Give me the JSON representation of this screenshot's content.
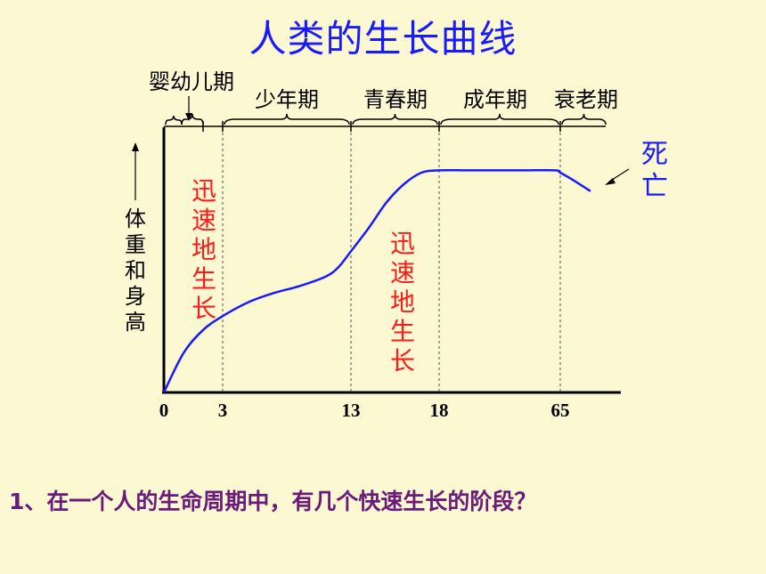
{
  "slide": {
    "title": "人类的生长曲线",
    "question": "1、在一个人的生命周期中，有几个快速生长的阶段？"
  },
  "chart_data": {
    "type": "line",
    "title": "人类的生长曲线",
    "ylabel": "体重和身高",
    "xlabel": "",
    "x_ticks": [
      "0",
      "3",
      "13",
      "18",
      "65"
    ],
    "stages": [
      {
        "name": "婴幼儿期",
        "from": 0,
        "to": 3
      },
      {
        "name": "少年期",
        "from": 3,
        "to": 13
      },
      {
        "name": "青春期",
        "from": 13,
        "to": 18
      },
      {
        "name": "成年期",
        "from": 18,
        "to": 65
      },
      {
        "name": "衰老期",
        "from": 65,
        "to": 70
      }
    ],
    "annotations": [
      {
        "text": "迅速地生长",
        "stage": "婴幼儿期"
      },
      {
        "text": "迅速地生长",
        "stage": "青春期"
      },
      {
        "text": "死亡",
        "stage": "end"
      }
    ],
    "series": [
      {
        "color": "#1a1aff",
        "points": [
          [
            0,
            0
          ],
          [
            1,
            0.17
          ],
          [
            2,
            0.27
          ],
          [
            3,
            0.33
          ],
          [
            5,
            0.39
          ],
          [
            7,
            0.43
          ],
          [
            9,
            0.46
          ],
          [
            11,
            0.5
          ],
          [
            12,
            0.54
          ],
          [
            13,
            0.61
          ],
          [
            14,
            0.71
          ],
          [
            15,
            0.82
          ],
          [
            16,
            0.9
          ],
          [
            17,
            0.95
          ],
          [
            18,
            0.96
          ],
          [
            30,
            0.96
          ],
          [
            50,
            0.96
          ],
          [
            63,
            0.96
          ],
          [
            65,
            0.95
          ],
          [
            67,
            0.92
          ],
          [
            70,
            0.87
          ]
        ]
      }
    ],
    "grid": false,
    "colors": {
      "axis": "#000000",
      "curve": "#1a1aff",
      "annotation": "#ff1a1a",
      "death": "#1a1aff"
    }
  }
}
